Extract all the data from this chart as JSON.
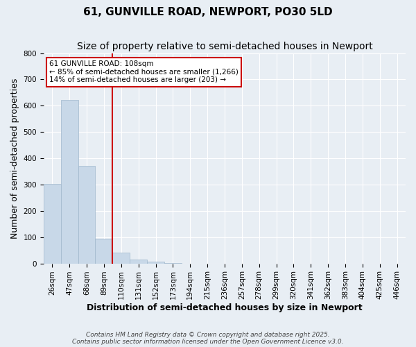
{
  "title": "61, GUNVILLE ROAD, NEWPORT, PO30 5LD",
  "subtitle": "Size of property relative to semi-detached houses in Newport",
  "xlabel": "Distribution of semi-detached houses by size in Newport",
  "ylabel": "Number of semi-detached properties",
  "bin_labels": [
    "26sqm",
    "47sqm",
    "68sqm",
    "89sqm",
    "110sqm",
    "131sqm",
    "152sqm",
    "173sqm",
    "194sqm",
    "215sqm",
    "236sqm",
    "257sqm",
    "278sqm",
    "299sqm",
    "320sqm",
    "341sqm",
    "362sqm",
    "383sqm",
    "404sqm",
    "425sqm",
    "446sqm"
  ],
  "bar_values": [
    302,
    621,
    370,
    95,
    40,
    14,
    6,
    1,
    0,
    0,
    0,
    0,
    0,
    0,
    0,
    0,
    0,
    0,
    0,
    0,
    0
  ],
  "bar_color": "#c8d8e8",
  "bar_edge_color": "#a0b8cc",
  "property_line_label": "61 GUNVILLE ROAD: 108sqm",
  "annotation_line1": "← 85% of semi-detached houses are smaller (1,266)",
  "annotation_line2": "14% of semi-detached houses are larger (203) →",
  "annotation_box_color": "#ffffff",
  "annotation_box_edge": "#cc0000",
  "vline_color": "#cc0000",
  "vline_x": 3.5,
  "ylim": [
    0,
    800
  ],
  "yticks": [
    0,
    100,
    200,
    300,
    400,
    500,
    600,
    700,
    800
  ],
  "background_color": "#e8eef4",
  "plot_background": "#e8eef4",
  "footer_line1": "Contains HM Land Registry data © Crown copyright and database right 2025.",
  "footer_line2": "Contains public sector information licensed under the Open Government Licence v3.0.",
  "title_fontsize": 11,
  "subtitle_fontsize": 10,
  "axis_label_fontsize": 9,
  "tick_fontsize": 7.5
}
